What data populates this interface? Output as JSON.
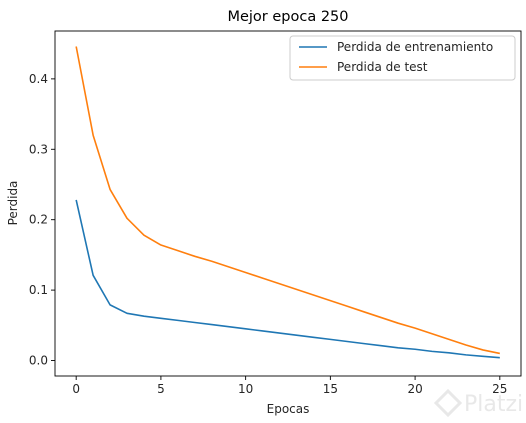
{
  "chart_data": {
    "type": "line",
    "title": "Mejor epoca 250",
    "xlabel": "Epocas",
    "ylabel": "Perdida",
    "xlim": [
      -1.25,
      26.25
    ],
    "ylim": [
      -0.022,
      0.468
    ],
    "xticks": [
      0,
      5,
      10,
      15,
      20,
      25
    ],
    "yticks": [
      0.0,
      0.1,
      0.2,
      0.3,
      0.4
    ],
    "ytick_labels": [
      "0.0",
      "0.1",
      "0.2",
      "0.3",
      "0.4"
    ],
    "grid": false,
    "legend_position": "top-right",
    "series": [
      {
        "name": "Perdida de entrenamiento",
        "color": "#1f77b4",
        "x": [
          0,
          1,
          2,
          3,
          4,
          5,
          6,
          7,
          8,
          9,
          10,
          11,
          12,
          13,
          14,
          15,
          16,
          17,
          18,
          19,
          20,
          21,
          22,
          23,
          24,
          25
        ],
        "values": [
          0.228,
          0.121,
          0.079,
          0.067,
          0.063,
          0.06,
          0.057,
          0.054,
          0.051,
          0.048,
          0.045,
          0.042,
          0.039,
          0.036,
          0.033,
          0.03,
          0.027,
          0.024,
          0.021,
          0.018,
          0.016,
          0.013,
          0.011,
          0.008,
          0.006,
          0.004
        ]
      },
      {
        "name": "Perdida de test",
        "color": "#ff7f0e",
        "x": [
          0,
          1,
          2,
          3,
          4,
          5,
          6,
          7,
          8,
          9,
          10,
          11,
          12,
          13,
          14,
          15,
          16,
          17,
          18,
          19,
          20,
          21,
          22,
          23,
          24,
          25
        ],
        "values": [
          0.446,
          0.32,
          0.243,
          0.202,
          0.178,
          0.164,
          0.156,
          0.148,
          0.141,
          0.133,
          0.125,
          0.117,
          0.109,
          0.101,
          0.093,
          0.085,
          0.077,
          0.069,
          0.061,
          0.053,
          0.046,
          0.038,
          0.03,
          0.022,
          0.015,
          0.01
        ]
      }
    ]
  },
  "watermark": {
    "text": "Platzi",
    "icon": "platzi-logo-icon"
  }
}
